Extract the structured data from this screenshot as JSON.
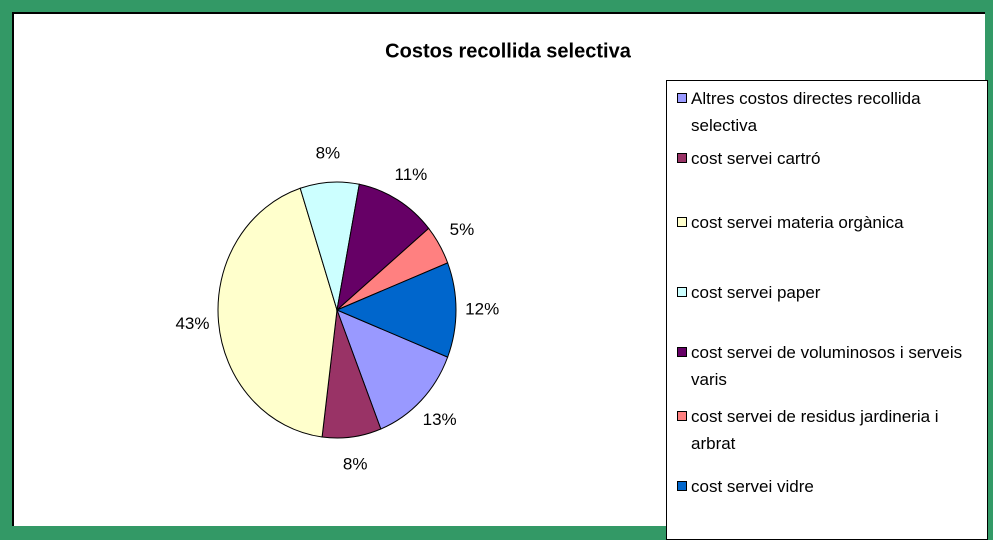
{
  "chart_data": {
    "type": "pie",
    "title": "Costos recollida selectiva",
    "categories": [
      "Altres costos directes recollida selectiva",
      "cost servei cartró",
      "cost servei materia orgànica",
      "cost servei paper",
      "cost servei de voluminosos i serveis varis",
      "cost servei de residus jardineria i arbrat",
      "cost servei vidre"
    ],
    "values": [
      13,
      8,
      43,
      8,
      11,
      5,
      12
    ],
    "value_labels": [
      "13%",
      "8%",
      "43%",
      "8%",
      "11%",
      "5%",
      "12%"
    ],
    "colors": [
      "#9999ff",
      "#993366",
      "#ffffcc",
      "#ccffff",
      "#660066",
      "#ff8080",
      "#0066cc"
    ]
  }
}
